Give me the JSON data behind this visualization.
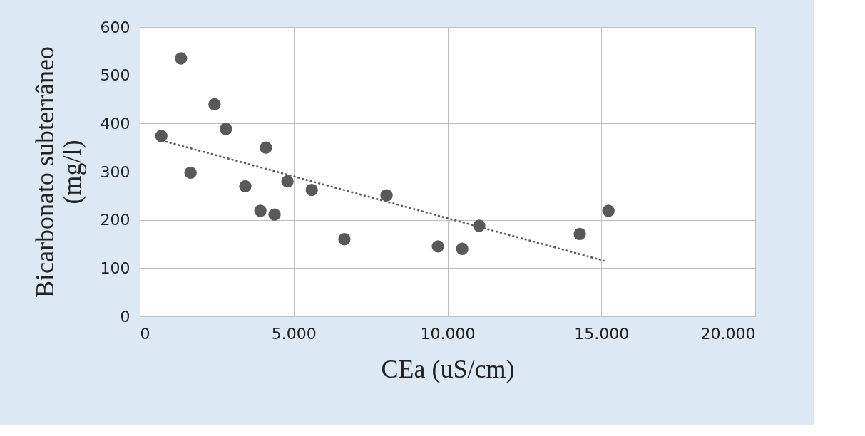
{
  "chart_data": {
    "type": "scatter",
    "xlabel": "CEa (uS/cm)",
    "ylabel": "Bicarbonato subterrâneo (mg/l)",
    "xlim": [
      0,
      20000
    ],
    "xticks": [
      0,
      {
        "value": 5000,
        "label": "5.000"
      },
      {
        "value": 10000,
        "label": "10.000"
      },
      {
        "value": 15000,
        "label": "15.000"
      },
      {
        "value": 20000,
        "label": "20.000"
      }
    ],
    "ylim": [
      0,
      600
    ],
    "yticks": [
      0,
      100,
      200,
      300,
      400,
      500,
      600
    ],
    "grid": true,
    "series": [
      {
        "marker": "circle",
        "color": "#595959",
        "x": [
          1340,
          700,
          1650,
          2430,
          2800,
          3430,
          4100,
          3920,
          4380,
          4800,
          5590,
          6650,
          8020,
          9690,
          10480,
          11030,
          14300,
          15230
        ],
        "values": [
          535,
          374,
          298,
          440,
          389,
          270,
          350,
          219,
          211,
          280,
          262,
          160,
          251,
          145,
          140,
          188,
          171,
          219
        ]
      },
      {
        "type": "line",
        "color": "#595959",
        "line_style": "dotted",
        "x": [
          700,
          15100
        ],
        "values": [
          365,
          115
        ]
      }
    ]
  }
}
